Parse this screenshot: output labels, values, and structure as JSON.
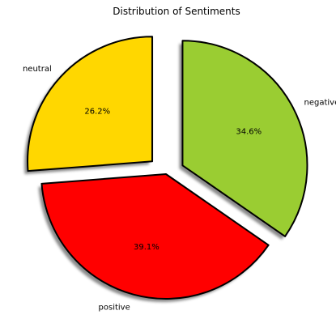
{
  "chart_data": {
    "type": "pie",
    "title": "Distribution of Sentiments",
    "slices": [
      {
        "label": "neutral",
        "value": 26.2,
        "pct_label": "26.2%",
        "color": "#ffd700",
        "explode": true
      },
      {
        "label": "positive",
        "value": 39.1,
        "pct_label": "39.1%",
        "color": "#ff0000",
        "explode": false
      },
      {
        "label": "negative",
        "value": 34.6,
        "pct_label": "34.6%",
        "color": "#9acd32",
        "explode": true
      }
    ],
    "start_angle_deg": 90,
    "direction": "counterclockwise",
    "shadow": true,
    "edge_color": "#000000"
  }
}
